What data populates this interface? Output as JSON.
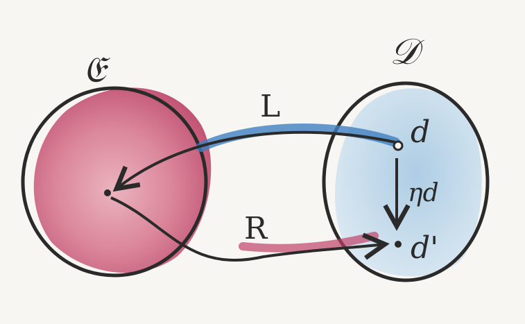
{
  "diagram": {
    "category_left": {
      "label": "𝔈",
      "color": "#c0436a"
    },
    "category_right": {
      "label": "𝒟",
      "color": "#7fb2d6"
    },
    "functor_left": {
      "label": "L",
      "color": "#3f7fc0"
    },
    "functor_right": {
      "label": "R",
      "color": "#c0436a"
    },
    "object_top": {
      "label": "d"
    },
    "object_bottom": {
      "label": "d'"
    },
    "unit_arrow": {
      "label": "ηd"
    },
    "ink_color": "#2a2a2a"
  }
}
